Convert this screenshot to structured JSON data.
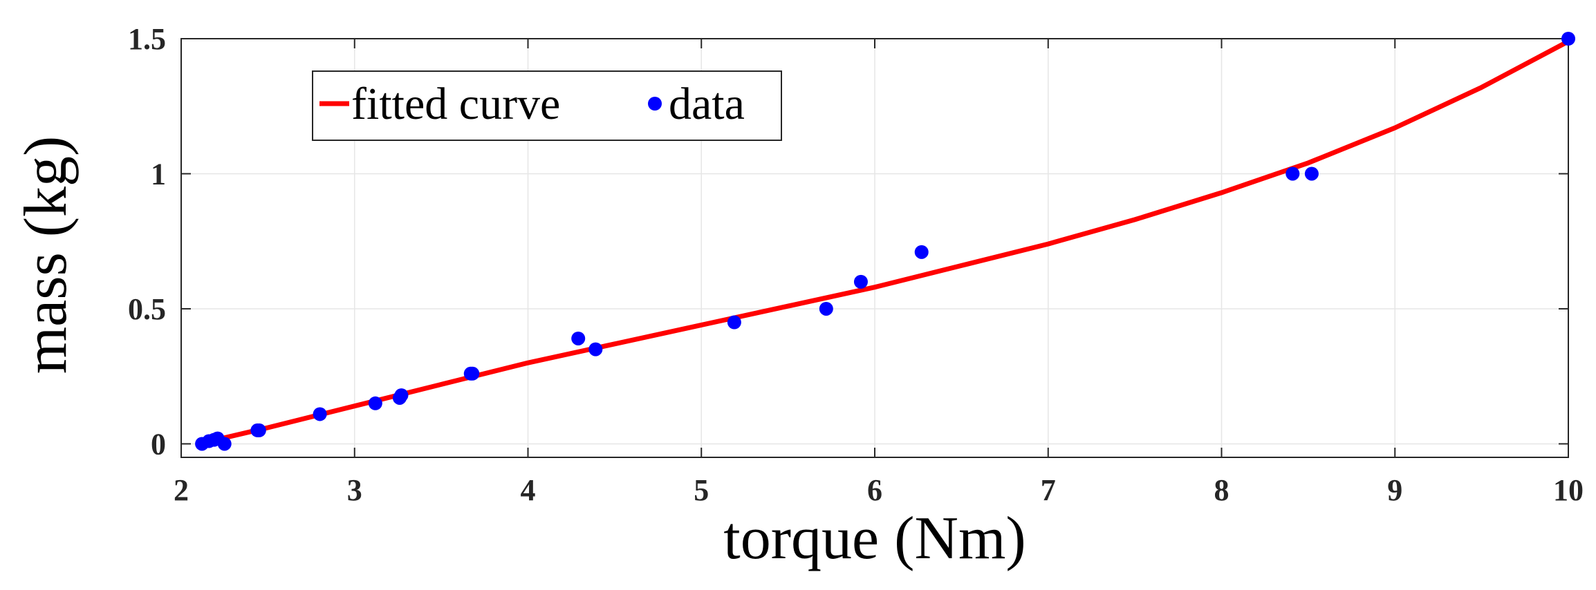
{
  "chart_data": {
    "type": "scatter",
    "title": "",
    "xlabel": "torque (Nm)",
    "ylabel": "mass (kg)",
    "xlim": [
      2,
      10
    ],
    "ylim": [
      -0.05,
      1.5
    ],
    "xticks": [
      2,
      3,
      4,
      5,
      6,
      7,
      8,
      9,
      10
    ],
    "yticks": [
      0,
      0.5,
      1,
      1.5
    ],
    "grid": true,
    "legend_position": "top-left",
    "series": [
      {
        "name": "fitted curve",
        "kind": "line",
        "color": "#ff0000",
        "x": [
          2.1,
          2.5,
          3.0,
          3.5,
          4.0,
          4.5,
          5.0,
          5.5,
          6.0,
          6.5,
          7.0,
          7.5,
          8.0,
          8.5,
          9.0,
          9.5,
          10.0
        ],
        "y": [
          0.0,
          0.06,
          0.14,
          0.22,
          0.3,
          0.37,
          0.44,
          0.51,
          0.58,
          0.66,
          0.74,
          0.83,
          0.93,
          1.04,
          1.17,
          1.32,
          1.49
        ]
      },
      {
        "name": "data",
        "kind": "scatter",
        "color": "#0000ff",
        "x": [
          2.12,
          2.16,
          2.19,
          2.21,
          2.25,
          2.44,
          2.45,
          2.8,
          3.12,
          3.26,
          3.27,
          3.67,
          3.68,
          4.29,
          4.39,
          5.19,
          5.72,
          5.92,
          6.27,
          8.41,
          8.52,
          10.0
        ],
        "y": [
          0.0,
          0.01,
          0.015,
          0.02,
          0.0,
          0.05,
          0.05,
          0.11,
          0.15,
          0.17,
          0.18,
          0.26,
          0.26,
          0.39,
          0.35,
          0.45,
          0.5,
          0.6,
          0.71,
          1.0,
          1.0,
          1.5
        ]
      }
    ]
  }
}
